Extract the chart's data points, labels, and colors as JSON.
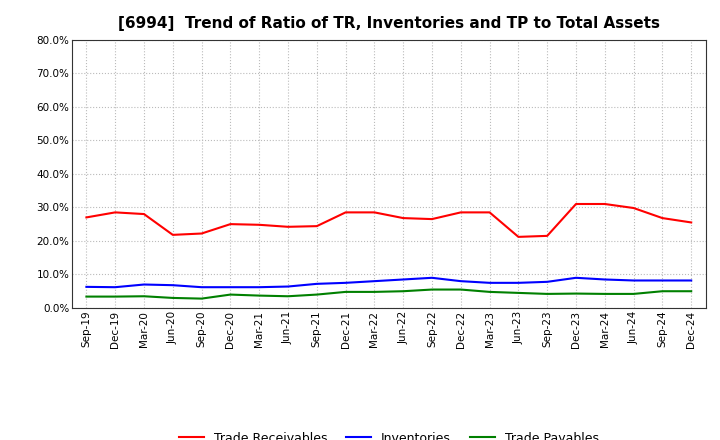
{
  "title": "[6994]  Trend of Ratio of TR, Inventories and TP to Total Assets",
  "labels": [
    "Sep-19",
    "Dec-19",
    "Mar-20",
    "Jun-20",
    "Sep-20",
    "Dec-20",
    "Mar-21",
    "Jun-21",
    "Sep-21",
    "Dec-21",
    "Mar-22",
    "Jun-22",
    "Sep-22",
    "Dec-22",
    "Mar-23",
    "Jun-23",
    "Sep-23",
    "Dec-23",
    "Mar-24",
    "Jun-24",
    "Sep-24",
    "Dec-24"
  ],
  "trade_receivables": [
    0.27,
    0.285,
    0.28,
    0.218,
    0.222,
    0.25,
    0.248,
    0.242,
    0.244,
    0.285,
    0.285,
    0.268,
    0.265,
    0.285,
    0.285,
    0.212,
    0.215,
    0.31,
    0.31,
    0.298,
    0.268,
    0.255
  ],
  "inventories": [
    0.063,
    0.062,
    0.07,
    0.068,
    0.062,
    0.062,
    0.062,
    0.064,
    0.072,
    0.075,
    0.08,
    0.085,
    0.09,
    0.08,
    0.075,
    0.075,
    0.078,
    0.09,
    0.085,
    0.082,
    0.082,
    0.082
  ],
  "trade_payables": [
    0.034,
    0.034,
    0.035,
    0.03,
    0.028,
    0.04,
    0.037,
    0.035,
    0.04,
    0.048,
    0.048,
    0.05,
    0.055,
    0.055,
    0.048,
    0.045,
    0.042,
    0.043,
    0.042,
    0.042,
    0.05,
    0.05
  ],
  "line_colors": {
    "trade_receivables": "#FF0000",
    "inventories": "#0000FF",
    "trade_payables": "#008000"
  },
  "legend_labels": [
    "Trade Receivables",
    "Inventories",
    "Trade Payables"
  ],
  "ylim": [
    0.0,
    0.8
  ],
  "yticks": [
    0.0,
    0.1,
    0.2,
    0.3,
    0.4,
    0.5,
    0.6,
    0.7,
    0.8
  ],
  "background_color": "#FFFFFF",
  "grid_color": "#BBBBBB",
  "title_fontsize": 11,
  "tick_fontsize": 7.5,
  "legend_fontsize": 9
}
